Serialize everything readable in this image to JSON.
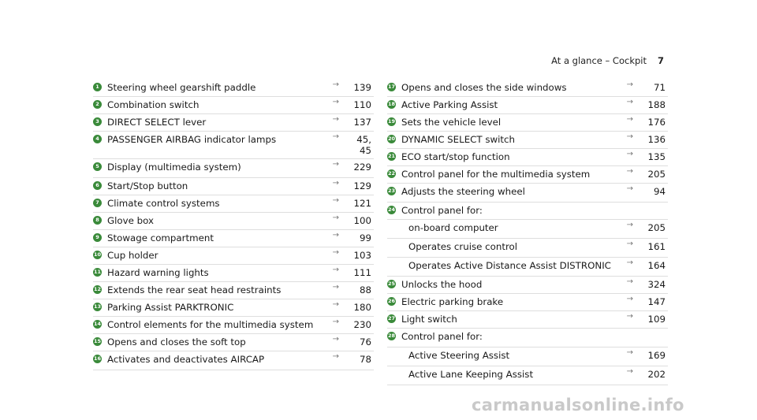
{
  "header": {
    "title": "At a glance – Cockpit",
    "page_number": "7"
  },
  "left_items": [
    {
      "num": "1",
      "label": "Steering wheel gearshift paddle",
      "page": "139"
    },
    {
      "num": "2",
      "label": "Combination switch",
      "page": "110"
    },
    {
      "num": "3",
      "label": "DIRECT SELECT lever",
      "page": "137"
    },
    {
      "num": "4",
      "label": "PASSENGER AIRBAG indicator lamps",
      "page": "45,\n45"
    },
    {
      "num": "5",
      "label": "Display (multimedia system)",
      "page": "229"
    },
    {
      "num": "6",
      "label": "Start/Stop button",
      "page": "129"
    },
    {
      "num": "7",
      "label": "Climate control systems",
      "page": "121"
    },
    {
      "num": "8",
      "label": "Glove box",
      "page": "100"
    },
    {
      "num": "9",
      "label": "Stowage compartment",
      "page": "99"
    },
    {
      "num": "10",
      "label": "Cup holder",
      "page": "103"
    },
    {
      "num": "11",
      "label": "Hazard warning lights",
      "page": "111"
    },
    {
      "num": "12",
      "label": "Extends the rear seat head restraints",
      "page": "88"
    },
    {
      "num": "13",
      "label": "Parking Assist PARKTRONIC",
      "page": "180"
    },
    {
      "num": "14",
      "label": "Control elements for the multimedia system",
      "page": "230"
    },
    {
      "num": "15",
      "label": "Opens and closes the soft top",
      "page": "76"
    },
    {
      "num": "16",
      "label": "Activates and deactivates AIRCAP",
      "page": "78"
    }
  ],
  "right_items": [
    {
      "num": "17",
      "label": "Opens and closes the side windows",
      "page": "71"
    },
    {
      "num": "18",
      "label": "Active Parking Assist",
      "page": "188"
    },
    {
      "num": "19",
      "label": "Sets the vehicle level",
      "page": "176"
    },
    {
      "num": "20",
      "label": "DYNAMIC SELECT switch",
      "page": "136"
    },
    {
      "num": "21",
      "label": "ECO start/stop function",
      "page": "135"
    },
    {
      "num": "22",
      "label": "Control panel for the multimedia system",
      "page": "205"
    },
    {
      "num": "23",
      "label": "Adjusts the steering wheel",
      "page": "94"
    },
    {
      "num": "24",
      "label": "Control panel for:",
      "page": ""
    },
    {
      "num": "",
      "label": "on-board computer",
      "page": "205"
    },
    {
      "num": "",
      "label": "Operates cruise control",
      "page": "161"
    },
    {
      "num": "",
      "label": "Operates Active Distance Assist DISTRONIC",
      "page": "164"
    },
    {
      "num": "25",
      "label": "Unlocks the hood",
      "page": "324"
    },
    {
      "num": "26",
      "label": "Electric parking brake",
      "page": "147"
    },
    {
      "num": "27",
      "label": "Light switch",
      "page": "109"
    },
    {
      "num": "28",
      "label": "Control panel for:",
      "page": ""
    },
    {
      "num": "",
      "label": "Active Steering Assist",
      "page": "169"
    },
    {
      "num": "",
      "label": "Active Lane Keeping Assist",
      "page": "202"
    }
  ],
  "arrow_glyph": "→",
  "watermark": "carmanualsonline.info"
}
